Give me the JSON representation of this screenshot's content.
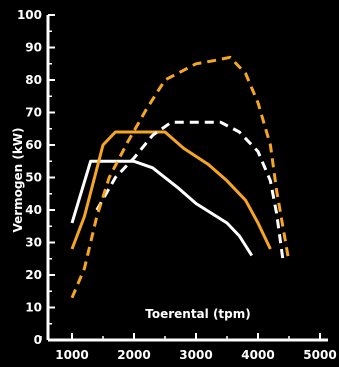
{
  "chart_data": {
    "type": "line",
    "title": "",
    "xlabel": "Toerental (tpm)",
    "ylabel": "Vermogen (kW)",
    "xlim": [
      800,
      5000
    ],
    "ylim": [
      0,
      100
    ],
    "x_ticks": [
      1000,
      2000,
      3000,
      4000,
      5000
    ],
    "y_ticks": [
      0,
      10,
      20,
      30,
      40,
      50,
      60,
      70,
      80,
      90,
      100
    ],
    "grid": false,
    "legend": "none",
    "series": [
      {
        "color": "#ffffff",
        "dash": "solid",
        "points": [
          [
            1000,
            36
          ],
          [
            1300,
            55
          ],
          [
            2000,
            55
          ],
          [
            2300,
            53
          ],
          [
            2700,
            47
          ],
          [
            3000,
            42
          ],
          [
            3500,
            36
          ],
          [
            3700,
            32
          ],
          [
            3900,
            26
          ]
        ]
      },
      {
        "color": "#f5a623",
        "dash": "solid",
        "points": [
          [
            1000,
            28
          ],
          [
            1200,
            38
          ],
          [
            1500,
            60
          ],
          [
            1700,
            64
          ],
          [
            2500,
            64
          ],
          [
            2800,
            59
          ],
          [
            3200,
            54
          ],
          [
            3500,
            49
          ],
          [
            3800,
            43
          ],
          [
            4000,
            36
          ],
          [
            4200,
            28
          ]
        ]
      },
      {
        "color": "#ffffff",
        "dash": "dashed",
        "points": [
          [
            1400,
            40
          ],
          [
            1700,
            50
          ],
          [
            2000,
            56
          ],
          [
            2300,
            63
          ],
          [
            2600,
            67
          ],
          [
            3000,
            67
          ],
          [
            3400,
            67
          ],
          [
            3700,
            64
          ],
          [
            4000,
            58
          ],
          [
            4200,
            49
          ],
          [
            4300,
            39
          ],
          [
            4400,
            25
          ]
        ]
      },
      {
        "color": "#f5a623",
        "dash": "dashed",
        "points": [
          [
            1000,
            13
          ],
          [
            1200,
            22
          ],
          [
            1400,
            38
          ],
          [
            1600,
            50
          ],
          [
            1900,
            61
          ],
          [
            2200,
            71
          ],
          [
            2500,
            80
          ],
          [
            2800,
            83
          ],
          [
            3000,
            85
          ],
          [
            3300,
            86
          ],
          [
            3550,
            87
          ],
          [
            3800,
            82
          ],
          [
            4000,
            73
          ],
          [
            4200,
            60
          ],
          [
            4300,
            46
          ],
          [
            4500,
            24
          ]
        ]
      }
    ]
  }
}
